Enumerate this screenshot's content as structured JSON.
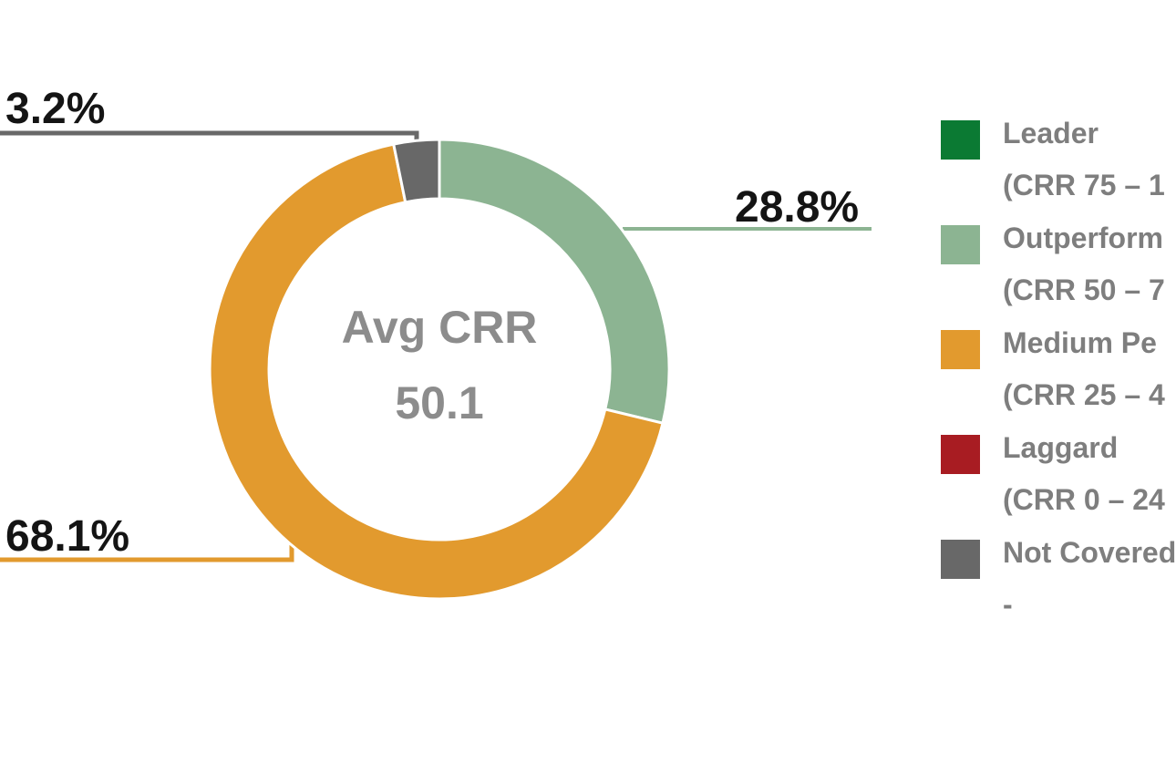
{
  "page": {
    "background": "#ffffff"
  },
  "chart_data": {
    "type": "pie",
    "subtype": "donut",
    "direction": "clockwise",
    "start_angle_deg": 0,
    "unit": "%",
    "center_label": "Avg CRR",
    "center_value": "50.1",
    "slices": [
      {
        "name": "Outperform",
        "value": 28.8,
        "label": "28.8%",
        "color": "#8CB492"
      },
      {
        "name": "Medium Pe",
        "value": 68.1,
        "label": "68.1%",
        "color": "#E29A2E"
      },
      {
        "name": "Not Covered",
        "value": 3.2,
        "label": "3.2%",
        "color": "#686868"
      }
    ],
    "legend_position": "right",
    "legend": [
      {
        "line1": "Leader",
        "line2": "(CRR 75 – 1",
        "color": "#0B7A33"
      },
      {
        "line1": "Outperform",
        "line2": "(CRR 50 – 7",
        "color": "#8CB492"
      },
      {
        "line1": "Medium Pe",
        "line2": "(CRR 25 – 4",
        "color": "#E29A2E"
      },
      {
        "line1": "Laggard",
        "line2": "(CRR 0 – 24",
        "color": "#A81C22"
      },
      {
        "line1": "Not Covered",
        "line2": "-",
        "color": "#686868"
      }
    ]
  }
}
